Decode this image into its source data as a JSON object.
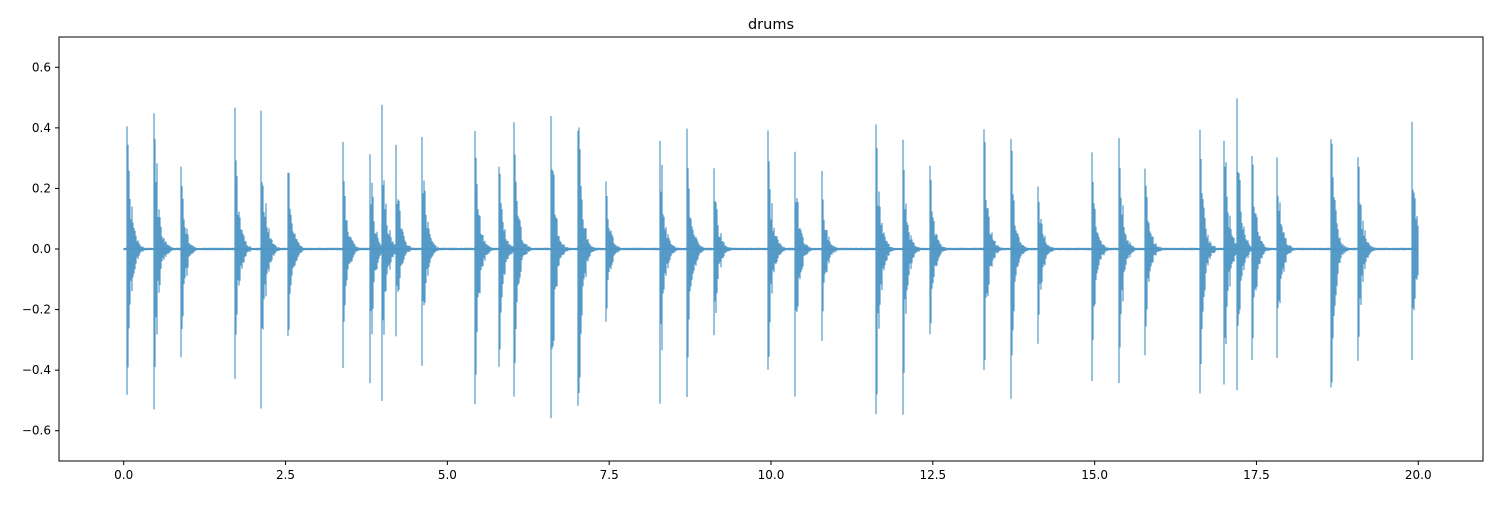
{
  "chart_data": {
    "type": "line",
    "title": "drums",
    "xlabel": "",
    "ylabel": "",
    "xlim": [
      -1.0,
      21.0
    ],
    "ylim": [
      -0.7,
      0.7
    ],
    "xticks": [
      0.0,
      2.5,
      5.0,
      7.5,
      10.0,
      12.5,
      15.0,
      17.5,
      20.0
    ],
    "xtick_labels": [
      "0.0",
      "2.5",
      "5.0",
      "7.5",
      "10.0",
      "12.5",
      "15.0",
      "17.5",
      "20.0"
    ],
    "yticks": [
      -0.6,
      -0.4,
      -0.2,
      0.0,
      0.2,
      0.4,
      0.6
    ],
    "ytick_labels": [
      "−0.6",
      "−0.4",
      "−0.2",
      "0.0",
      "0.2",
      "0.4",
      "0.6"
    ],
    "grid": false,
    "line_color": "#4c94c4",
    "series": [
      {
        "x_range": [
          0.0,
          20.0
        ],
        "transients": [
          {
            "t": 0.05,
            "max": 0.45,
            "min": -0.5
          },
          {
            "t": 0.47,
            "max": 0.52,
            "min": -0.53
          },
          {
            "t": 0.88,
            "max": 0.31,
            "min": -0.39
          },
          {
            "t": 1.71,
            "max": 0.47,
            "min": -0.46
          },
          {
            "t": 2.12,
            "max": 0.49,
            "min": -0.58
          },
          {
            "t": 2.54,
            "max": 0.29,
            "min": -0.32
          },
          {
            "t": 3.38,
            "max": 0.37,
            "min": -0.43
          },
          {
            "t": 3.8,
            "max": 0.35,
            "min": -0.46
          },
          {
            "t": 3.98,
            "max": 0.52,
            "min": -0.56
          },
          {
            "t": 4.2,
            "max": 0.38,
            "min": -0.31
          },
          {
            "t": 4.6,
            "max": 0.43,
            "min": -0.41
          },
          {
            "t": 5.42,
            "max": 0.43,
            "min": -0.55
          },
          {
            "t": 5.8,
            "max": 0.29,
            "min": -0.39
          },
          {
            "t": 6.02,
            "max": 0.45,
            "min": -0.51
          },
          {
            "t": 6.6,
            "max": 0.45,
            "min": -0.57
          },
          {
            "t": 7.02,
            "max": 0.45,
            "min": -0.59
          },
          {
            "t": 7.44,
            "max": 0.25,
            "min": -0.28
          },
          {
            "t": 8.28,
            "max": 0.42,
            "min": -0.52
          },
          {
            "t": 8.7,
            "max": 0.4,
            "min": -0.53
          },
          {
            "t": 9.12,
            "max": 0.27,
            "min": -0.32
          },
          {
            "t": 9.95,
            "max": 0.4,
            "min": -0.45
          },
          {
            "t": 10.36,
            "max": 0.37,
            "min": -0.5
          },
          {
            "t": 10.78,
            "max": 0.28,
            "min": -0.34
          },
          {
            "t": 11.62,
            "max": 0.42,
            "min": -0.57
          },
          {
            "t": 12.03,
            "max": 0.41,
            "min": -0.59
          },
          {
            "t": 12.45,
            "max": 0.3,
            "min": -0.33
          },
          {
            "t": 13.29,
            "max": 0.43,
            "min": -0.47
          },
          {
            "t": 13.7,
            "max": 0.41,
            "min": -0.52
          },
          {
            "t": 14.12,
            "max": 0.24,
            "min": -0.33
          },
          {
            "t": 14.95,
            "max": 0.36,
            "min": -0.47
          },
          {
            "t": 15.37,
            "max": 0.41,
            "min": -0.47
          },
          {
            "t": 15.78,
            "max": 0.3,
            "min": -0.36
          },
          {
            "t": 16.62,
            "max": 0.4,
            "min": -0.5
          },
          {
            "t": 17.0,
            "max": 0.42,
            "min": -0.47
          },
          {
            "t": 17.19,
            "max": 0.53,
            "min": -0.5
          },
          {
            "t": 17.43,
            "max": 0.36,
            "min": -0.41
          },
          {
            "t": 17.82,
            "max": 0.34,
            "min": -0.42
          },
          {
            "t": 18.65,
            "max": 0.41,
            "min": -0.52
          },
          {
            "t": 19.07,
            "max": 0.32,
            "min": -0.37
          },
          {
            "t": 19.9,
            "max": 0.42,
            "min": -0.41
          }
        ]
      }
    ]
  }
}
